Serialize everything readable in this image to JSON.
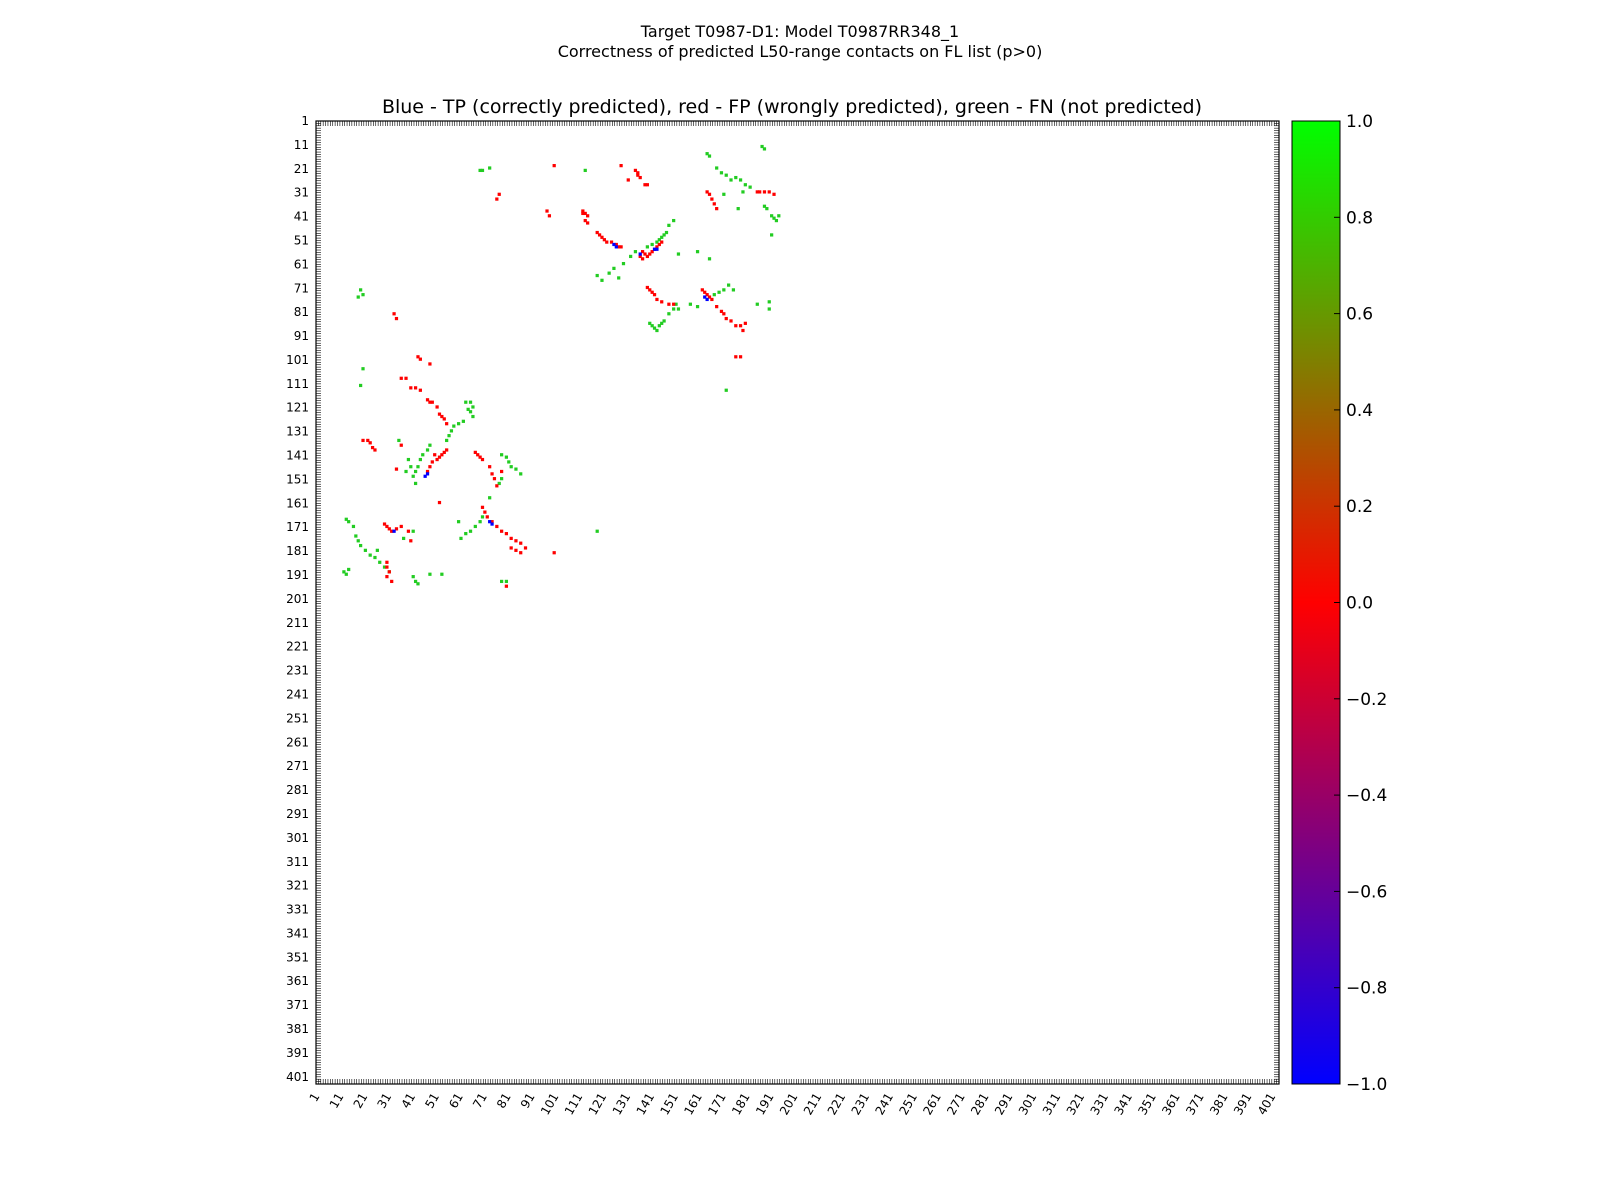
{
  "figure": {
    "title_line1": "Target T0987-D1: Model T0987RR348_1",
    "title_line2": "Correctness of predicted L50-range contacts on FL list (p>0)"
  },
  "chart_data": {
    "type": "heatmap",
    "title": "Blue - TP (correctly predicted), red - FP (wrongly predicted), green - FN (not predicted)",
    "xlabel": "",
    "ylabel": "",
    "x_tick_labels": [
      "1",
      "11",
      "21",
      "31",
      "41",
      "51",
      "61",
      "71",
      "81",
      "91",
      "101",
      "111",
      "121",
      "131",
      "141",
      "151",
      "161",
      "171",
      "181",
      "191",
      "201",
      "211",
      "221",
      "231",
      "241",
      "251",
      "261",
      "271",
      "281",
      "291",
      "301",
      "311",
      "321",
      "331",
      "341",
      "351",
      "361",
      "371",
      "381",
      "391",
      "401"
    ],
    "y_tick_labels": [
      "1",
      "11",
      "21",
      "31",
      "41",
      "51",
      "61",
      "71",
      "81",
      "91",
      "101",
      "111",
      "121",
      "131",
      "141",
      "151",
      "161",
      "171",
      "181",
      "191",
      "201",
      "211",
      "221",
      "231",
      "241",
      "251",
      "261",
      "271",
      "281",
      "291",
      "301",
      "311",
      "321",
      "331",
      "341",
      "351",
      "361",
      "371",
      "381",
      "391",
      "401"
    ],
    "xlim": [
      1,
      404
    ],
    "ylim": [
      1,
      404
    ],
    "y_inverted": true,
    "colorbar": {
      "min": -1.0,
      "max": 1.0,
      "tick_labels": [
        "1.0",
        "0.8",
        "0.6",
        "0.4",
        "0.2",
        "0.0",
        "−0.2",
        "−0.4",
        "−0.6",
        "−0.8",
        "−1.0"
      ],
      "colors": [
        "#0000ff",
        "#ff0000",
        "#00ff00"
      ]
    },
    "categories": [
      {
        "name": "TP",
        "value": -1.0,
        "color": "#0000ff"
      },
      {
        "name": "FP",
        "value": 0.0,
        "color": "#ff0000"
      },
      {
        "name": "FN",
        "value": 1.0,
        "color": "#22cc22"
      }
    ],
    "cells": {
      "FP": [
        [
          134,
          21
        ],
        [
          135,
          22
        ],
        [
          135,
          23
        ],
        [
          136,
          24
        ],
        [
          138,
          27
        ],
        [
          139,
          27
        ],
        [
          112,
          38
        ],
        [
          112,
          39
        ],
        [
          113,
          39
        ],
        [
          114,
          40
        ],
        [
          113,
          42
        ],
        [
          114,
          43
        ],
        [
          118,
          47
        ],
        [
          119,
          48
        ],
        [
          120,
          49
        ],
        [
          121,
          50
        ],
        [
          122,
          51
        ],
        [
          124,
          51
        ],
        [
          126,
          52
        ],
        [
          127,
          53
        ],
        [
          128,
          53
        ],
        [
          137,
          55
        ],
        [
          138,
          56
        ],
        [
          139,
          57
        ],
        [
          140,
          56
        ],
        [
          141,
          55
        ],
        [
          142,
          54
        ],
        [
          143,
          53
        ],
        [
          144,
          52
        ],
        [
          145,
          51
        ],
        [
          136,
          57
        ],
        [
          137,
          58
        ],
        [
          139,
          70
        ],
        [
          140,
          71
        ],
        [
          141,
          72
        ],
        [
          142,
          73
        ],
        [
          143,
          75
        ],
        [
          145,
          76
        ],
        [
          148,
          77
        ],
        [
          150,
          77
        ],
        [
          162,
          71
        ],
        [
          163,
          72
        ],
        [
          164,
          73
        ],
        [
          165,
          74
        ],
        [
          166,
          75
        ],
        [
          168,
          78
        ],
        [
          170,
          80
        ],
        [
          171,
          81
        ],
        [
          172,
          83
        ],
        [
          174,
          84
        ],
        [
          176,
          86
        ],
        [
          178,
          86
        ],
        [
          180,
          85
        ],
        [
          179,
          88
        ],
        [
          164,
          30
        ],
        [
          165,
          31
        ],
        [
          166,
          33
        ],
        [
          167,
          35
        ],
        [
          168,
          37
        ],
        [
          185,
          30
        ],
        [
          186,
          30
        ],
        [
          188,
          30
        ],
        [
          190,
          30
        ],
        [
          192,
          31
        ],
        [
          128,
          19
        ],
        [
          131,
          25
        ],
        [
          100,
          19
        ],
        [
          77,
          31
        ],
        [
          76,
          33
        ],
        [
          97,
          38
        ],
        [
          98,
          40
        ],
        [
          176,
          99
        ],
        [
          178,
          99
        ],
        [
          33,
          81
        ],
        [
          34,
          83
        ],
        [
          43,
          99
        ],
        [
          44,
          100
        ],
        [
          48,
          102
        ],
        [
          36,
          108
        ],
        [
          38,
          108
        ],
        [
          40,
          112
        ],
        [
          42,
          112
        ],
        [
          44,
          113
        ],
        [
          47,
          117
        ],
        [
          48,
          118
        ],
        [
          49,
          118
        ],
        [
          51,
          120
        ],
        [
          52,
          123
        ],
        [
          53,
          124
        ],
        [
          54,
          125
        ],
        [
          55,
          127
        ],
        [
          20,
          134
        ],
        [
          22,
          134
        ],
        [
          23,
          135
        ],
        [
          24,
          137
        ],
        [
          25,
          138
        ],
        [
          36,
          136
        ],
        [
          34,
          146
        ],
        [
          50,
          140
        ],
        [
          51,
          142
        ],
        [
          52,
          141
        ],
        [
          53,
          140
        ],
        [
          54,
          139
        ],
        [
          55,
          138
        ],
        [
          49,
          143
        ],
        [
          48,
          145
        ],
        [
          47,
          147
        ],
        [
          67,
          139
        ],
        [
          68,
          140
        ],
        [
          69,
          141
        ],
        [
          70,
          142
        ],
        [
          73,
          145
        ],
        [
          74,
          148
        ],
        [
          75,
          150
        ],
        [
          76,
          153
        ],
        [
          78,
          147
        ],
        [
          70,
          162
        ],
        [
          71,
          164
        ],
        [
          72,
          166
        ],
        [
          74,
          168
        ],
        [
          76,
          170
        ],
        [
          78,
          172
        ],
        [
          80,
          173
        ],
        [
          82,
          175
        ],
        [
          84,
          176
        ],
        [
          86,
          177
        ],
        [
          82,
          179
        ],
        [
          84,
          180
        ],
        [
          86,
          181
        ],
        [
          88,
          179
        ],
        [
          100,
          181
        ],
        [
          29,
          169
        ],
        [
          30,
          170
        ],
        [
          31,
          171
        ],
        [
          32,
          172
        ],
        [
          34,
          171
        ],
        [
          36,
          170
        ],
        [
          39,
          172
        ],
        [
          40,
          176
        ],
        [
          30,
          185
        ],
        [
          30,
          187
        ],
        [
          31,
          189
        ],
        [
          30,
          191
        ],
        [
          32,
          193
        ],
        [
          52,
          160
        ],
        [
          80,
          195
        ]
      ],
      "TP": [
        [
          125,
          52
        ],
        [
          126,
          53
        ],
        [
          136,
          56
        ],
        [
          142,
          54
        ],
        [
          143,
          54
        ],
        [
          163,
          74
        ],
        [
          164,
          75
        ],
        [
          73,
          168
        ],
        [
          74,
          169
        ],
        [
          46,
          149
        ],
        [
          47,
          148
        ],
        [
          33,
          172
        ]
      ],
      "FN": [
        [
          69,
          21
        ],
        [
          70,
          21
        ],
        [
          73,
          20
        ],
        [
          113,
          21
        ],
        [
          164,
          14
        ],
        [
          165,
          15
        ],
        [
          168,
          20
        ],
        [
          170,
          22
        ],
        [
          172,
          23
        ],
        [
          174,
          25
        ],
        [
          176,
          24
        ],
        [
          178,
          25
        ],
        [
          180,
          27
        ],
        [
          182,
          28
        ],
        [
          187,
          11
        ],
        [
          188,
          12
        ],
        [
          171,
          31
        ],
        [
          177,
          37
        ],
        [
          179,
          30
        ],
        [
          188,
          36
        ],
        [
          189,
          37
        ],
        [
          191,
          40
        ],
        [
          192,
          41
        ],
        [
          193,
          42
        ],
        [
          194,
          40
        ],
        [
          191,
          48
        ],
        [
          150,
          42
        ],
        [
          148,
          44
        ],
        [
          147,
          47
        ],
        [
          146,
          48
        ],
        [
          145,
          49
        ],
        [
          144,
          50
        ],
        [
          143,
          51
        ],
        [
          141,
          52
        ],
        [
          139,
          53
        ],
        [
          134,
          55
        ],
        [
          132,
          57
        ],
        [
          129,
          60
        ],
        [
          125,
          62
        ],
        [
          123,
          64
        ],
        [
          118,
          65
        ],
        [
          120,
          67
        ],
        [
          127,
          66
        ],
        [
          173,
          69
        ],
        [
          171,
          71
        ],
        [
          169,
          72
        ],
        [
          167,
          73
        ],
        [
          175,
          71
        ],
        [
          165,
          58
        ],
        [
          160,
          55
        ],
        [
          152,
          56
        ],
        [
          140,
          85
        ],
        [
          141,
          86
        ],
        [
          142,
          87
        ],
        [
          143,
          88
        ],
        [
          144,
          86
        ],
        [
          145,
          85
        ],
        [
          146,
          84
        ],
        [
          148,
          81
        ],
        [
          150,
          79
        ],
        [
          151,
          77
        ],
        [
          152,
          79
        ],
        [
          157,
          77
        ],
        [
          160,
          78
        ],
        [
          185,
          77
        ],
        [
          190,
          76
        ],
        [
          190,
          79
        ],
        [
          172,
          113
        ],
        [
          19,
          71
        ],
        [
          20,
          73
        ],
        [
          18,
          74
        ],
        [
          20,
          104
        ],
        [
          19,
          111
        ],
        [
          63,
          118
        ],
        [
          65,
          118
        ],
        [
          66,
          120
        ],
        [
          64,
          121
        ],
        [
          65,
          122
        ],
        [
          66,
          124
        ],
        [
          62,
          126
        ],
        [
          60,
          127
        ],
        [
          58,
          128
        ],
        [
          57,
          130
        ],
        [
          56,
          132
        ],
        [
          55,
          134
        ],
        [
          48,
          136
        ],
        [
          47,
          138
        ],
        [
          45,
          140
        ],
        [
          44,
          142
        ],
        [
          43,
          145
        ],
        [
          42,
          147
        ],
        [
          41,
          149
        ],
        [
          42,
          152
        ],
        [
          78,
          140
        ],
        [
          80,
          141
        ],
        [
          81,
          143
        ],
        [
          82,
          145
        ],
        [
          84,
          146
        ],
        [
          86,
          148
        ],
        [
          78,
          150
        ],
        [
          77,
          152
        ],
        [
          35,
          134
        ],
        [
          39,
          142
        ],
        [
          40,
          145
        ],
        [
          38,
          147
        ],
        [
          70,
          166
        ],
        [
          69,
          168
        ],
        [
          67,
          170
        ],
        [
          65,
          172
        ],
        [
          63,
          173
        ],
        [
          61,
          175
        ],
        [
          73,
          158
        ],
        [
          60,
          168
        ],
        [
          13,
          167
        ],
        [
          14,
          168
        ],
        [
          16,
          170
        ],
        [
          17,
          174
        ],
        [
          18,
          176
        ],
        [
          19,
          178
        ],
        [
          21,
          180
        ],
        [
          23,
          182
        ],
        [
          25,
          183
        ],
        [
          26,
          180
        ],
        [
          27,
          185
        ],
        [
          29,
          187
        ],
        [
          31,
          189
        ],
        [
          41,
          172
        ],
        [
          37,
          175
        ],
        [
          41,
          191
        ],
        [
          42,
          193
        ],
        [
          43,
          194
        ],
        [
          48,
          190
        ],
        [
          53,
          190
        ],
        [
          78,
          193
        ],
        [
          80,
          193
        ],
        [
          12,
          189
        ],
        [
          14,
          188
        ],
        [
          13,
          190
        ],
        [
          118,
          172
        ]
      ]
    }
  }
}
